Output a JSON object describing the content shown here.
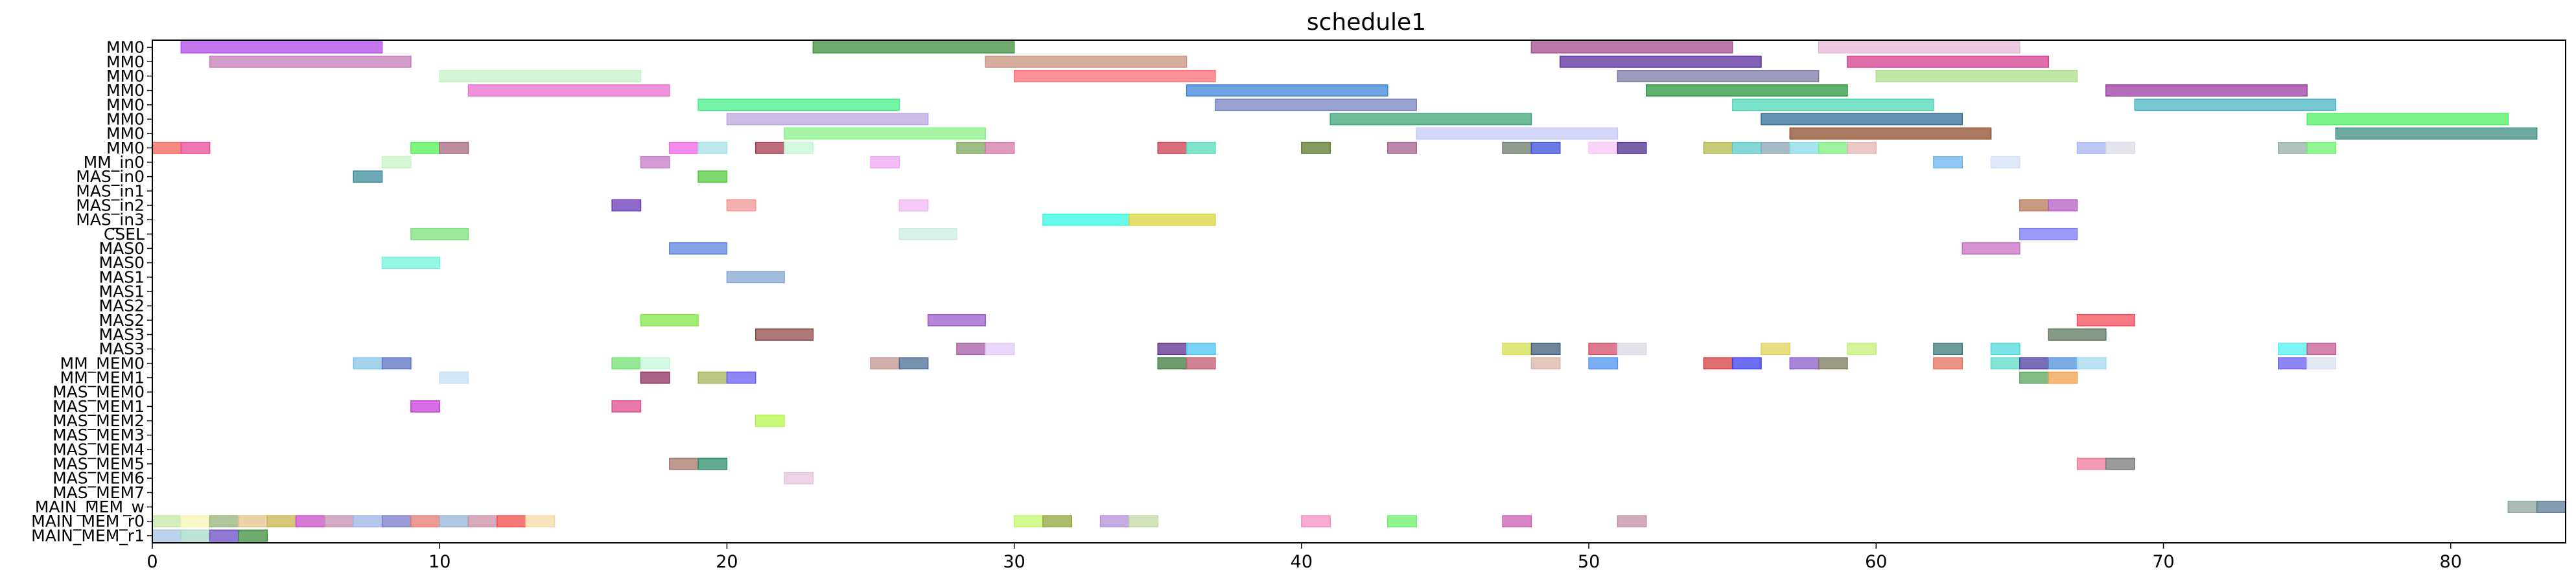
{
  "chart_data": {
    "type": "gantt",
    "title": "schedule1",
    "xlabel": "",
    "ylabel": "",
    "xlim": [
      0,
      84
    ],
    "xticks": [
      0,
      10,
      20,
      30,
      40,
      50,
      60,
      70,
      80
    ],
    "grid": false,
    "rows": [
      "MM0",
      "MM0",
      "MM0",
      "MM0",
      "MM0",
      "MM0",
      "MM0",
      "MM0",
      "MM_in0",
      "MAS_in0",
      "MAS_in1",
      "MAS_in2",
      "MAS_in3",
      "CSEL",
      "MAS0",
      "MAS0",
      "MAS1",
      "MAS1",
      "MAS2",
      "MAS2",
      "MAS3",
      "MAS3",
      "MM_MEM0",
      "MM_MEM1",
      "MAS_MEM0",
      "MAS_MEM1",
      "MAS_MEM2",
      "MAS_MEM3",
      "MAS_MEM4",
      "MAS_MEM5",
      "MAS_MEM6",
      "MAS_MEM7",
      "MAIN_MEM_w",
      "MAIN_MEM_r0",
      "MAIN_MEM_r1"
    ],
    "tasks": [
      {
        "row": 0,
        "start": 1,
        "end": 8,
        "color": "#b24ae8"
      },
      {
        "row": 0,
        "start": 23,
        "end": 30,
        "color": "#3e8f3e"
      },
      {
        "row": 0,
        "start": 48,
        "end": 55,
        "color": "#a64d8f"
      },
      {
        "row": 0,
        "start": 58,
        "end": 65,
        "color": "#e6b8d6"
      },
      {
        "row": 1,
        "start": 2,
        "end": 9,
        "color": "#c27bb4"
      },
      {
        "row": 1,
        "start": 29,
        "end": 36,
        "color": "#c9917f"
      },
      {
        "row": 1,
        "start": 49,
        "end": 56,
        "color": "#5a2d9c"
      },
      {
        "row": 1,
        "start": 59,
        "end": 66,
        "color": "#d43d8f"
      },
      {
        "row": 2,
        "start": 10,
        "end": 17,
        "color": "#c6f2c6"
      },
      {
        "row": 2,
        "start": 30,
        "end": 37,
        "color": "#ff6b75"
      },
      {
        "row": 2,
        "start": 51,
        "end": 58,
        "color": "#7d7aa8"
      },
      {
        "row": 2,
        "start": 60,
        "end": 67,
        "color": "#aee08a"
      },
      {
        "row": 3,
        "start": 11,
        "end": 18,
        "color": "#ec6fd0"
      },
      {
        "row": 3,
        "start": 36,
        "end": 43,
        "color": "#3d85d9"
      },
      {
        "row": 3,
        "start": 52,
        "end": 59,
        "color": "#2b9a3f"
      },
      {
        "row": 3,
        "start": 68,
        "end": 75,
        "color": "#9e3da3"
      },
      {
        "row": 4,
        "start": 19,
        "end": 26,
        "color": "#45f08a"
      },
      {
        "row": 4,
        "start": 37,
        "end": 44,
        "color": "#7784c2"
      },
      {
        "row": 4,
        "start": 55,
        "end": 62,
        "color": "#4ed9b8"
      },
      {
        "row": 4,
        "start": 69,
        "end": 76,
        "color": "#48b4c4"
      },
      {
        "row": 5,
        "start": 20,
        "end": 27,
        "color": "#b9a6e0"
      },
      {
        "row": 5,
        "start": 41,
        "end": 48,
        "color": "#3da67a"
      },
      {
        "row": 5,
        "start": 56,
        "end": 63,
        "color": "#2e6d96"
      },
      {
        "row": 5,
        "start": 75,
        "end": 82,
        "color": "#4df062"
      },
      {
        "row": 6,
        "start": 22,
        "end": 29,
        "color": "#88f088"
      },
      {
        "row": 6,
        "start": 44,
        "end": 51,
        "color": "#c7c9f5"
      },
      {
        "row": 6,
        "start": 57,
        "end": 64,
        "color": "#8c4e2a"
      },
      {
        "row": 6,
        "start": 76,
        "end": 83,
        "color": "#3d8c80"
      },
      {
        "row": 7,
        "start": 0,
        "end": 1,
        "color": "#f0645a"
      },
      {
        "row": 7,
        "start": 1,
        "end": 2,
        "color": "#e84a98"
      },
      {
        "row": 7,
        "start": 9,
        "end": 10,
        "color": "#54f054"
      },
      {
        "row": 7,
        "start": 10,
        "end": 11,
        "color": "#a6687f"
      },
      {
        "row": 7,
        "start": 18,
        "end": 19,
        "color": "#f064e6"
      },
      {
        "row": 7,
        "start": 19,
        "end": 20,
        "color": "#a6e0e8"
      },
      {
        "row": 7,
        "start": 21,
        "end": 22,
        "color": "#a63a4d"
      },
      {
        "row": 7,
        "start": 22,
        "end": 23,
        "color": "#c4f5d6"
      },
      {
        "row": 7,
        "start": 28,
        "end": 29,
        "color": "#7fa85e"
      },
      {
        "row": 7,
        "start": 29,
        "end": 30,
        "color": "#d47aa8"
      },
      {
        "row": 7,
        "start": 35,
        "end": 36,
        "color": "#c93d4d"
      },
      {
        "row": 7,
        "start": 36,
        "end": 37,
        "color": "#54dbb8"
      },
      {
        "row": 7,
        "start": 40,
        "end": 41,
        "color": "#5c7a2e"
      },
      {
        "row": 7,
        "start": 43,
        "end": 44,
        "color": "#a6618f"
      },
      {
        "row": 7,
        "start": 47,
        "end": 48,
        "color": "#6b7a6b"
      },
      {
        "row": 7,
        "start": 48,
        "end": 49,
        "color": "#3d4ed9"
      },
      {
        "row": 7,
        "start": 50,
        "end": 51,
        "color": "#f7c4f5"
      },
      {
        "row": 7,
        "start": 51,
        "end": 52,
        "color": "#4d2d8f"
      },
      {
        "row": 7,
        "start": 54,
        "end": 55,
        "color": "#b4b84a"
      },
      {
        "row": 7,
        "start": 55,
        "end": 56,
        "color": "#5cc9c9"
      },
      {
        "row": 7,
        "start": 56,
        "end": 57,
        "color": "#8aa6b4"
      },
      {
        "row": 7,
        "start": 57,
        "end": 58,
        "color": "#8ad9e6"
      },
      {
        "row": 7,
        "start": 58,
        "end": 59,
        "color": "#7ef07e"
      },
      {
        "row": 7,
        "start": 59,
        "end": 60,
        "color": "#e6b4b4"
      },
      {
        "row": 7,
        "start": 67,
        "end": 68,
        "color": "#a6b4f0"
      },
      {
        "row": 7,
        "start": 68,
        "end": 69,
        "color": "#d9dbe6"
      },
      {
        "row": 7,
        "start": 74,
        "end": 75,
        "color": "#94aea6"
      },
      {
        "row": 7,
        "start": 75,
        "end": 76,
        "color": "#6ef06e"
      },
      {
        "row": 8,
        "start": 8,
        "end": 9,
        "color": "#c6f5c6"
      },
      {
        "row": 8,
        "start": 17,
        "end": 18,
        "color": "#c77ac9"
      },
      {
        "row": 8,
        "start": 25,
        "end": 26,
        "color": "#f0a6f5"
      },
      {
        "row": 8,
        "start": 62,
        "end": 63,
        "color": "#6bb4f0"
      },
      {
        "row": 8,
        "start": 64,
        "end": 65,
        "color": "#d3e0f5"
      },
      {
        "row": 9,
        "start": 7,
        "end": 8,
        "color": "#3d8c9e"
      },
      {
        "row": 9,
        "start": 19,
        "end": 20,
        "color": "#54c93d"
      },
      {
        "row": 11,
        "start": 16,
        "end": 17,
        "color": "#6b38b8"
      },
      {
        "row": 11,
        "start": 20,
        "end": 21,
        "color": "#f09494"
      },
      {
        "row": 11,
        "start": 26,
        "end": 27,
        "color": "#f2b8f0"
      },
      {
        "row": 11,
        "start": 65,
        "end": 66,
        "color": "#b87a5c"
      },
      {
        "row": 11,
        "start": 66,
        "end": 67,
        "color": "#b45cc4"
      },
      {
        "row": 12,
        "start": 31,
        "end": 34,
        "color": "#38f5e0"
      },
      {
        "row": 12,
        "start": 34,
        "end": 37,
        "color": "#d9d438"
      },
      {
        "row": 13,
        "start": 9,
        "end": 11,
        "color": "#7de07d"
      },
      {
        "row": 13,
        "start": 26,
        "end": 28,
        "color": "#ccece0"
      },
      {
        "row": 13,
        "start": 65,
        "end": 67,
        "color": "#7a7af5"
      },
      {
        "row": 14,
        "start": 18,
        "end": 20,
        "color": "#5e84e0"
      },
      {
        "row": 14,
        "start": 63,
        "end": 65,
        "color": "#c970c4"
      },
      {
        "row": 15,
        "start": 8,
        "end": 10,
        "color": "#70f5dc"
      },
      {
        "row": 16,
        "start": 20,
        "end": 22,
        "color": "#85a6d1"
      },
      {
        "row": 19,
        "start": 17,
        "end": 19,
        "color": "#82e84a"
      },
      {
        "row": 19,
        "start": 27,
        "end": 29,
        "color": "#9b5ccc"
      },
      {
        "row": 19,
        "start": 67,
        "end": 69,
        "color": "#f54d5c"
      },
      {
        "row": 20,
        "start": 21,
        "end": 23,
        "color": "#8f4a4a"
      },
      {
        "row": 20,
        "start": 66,
        "end": 68,
        "color": "#5c7a5c"
      },
      {
        "row": 21,
        "start": 28,
        "end": 29,
        "color": "#a65ca6"
      },
      {
        "row": 21,
        "start": 29,
        "end": 30,
        "color": "#e0c9f5"
      },
      {
        "row": 21,
        "start": 35,
        "end": 36,
        "color": "#5c2d8c"
      },
      {
        "row": 21,
        "start": 36,
        "end": 37,
        "color": "#4dc4f0"
      },
      {
        "row": 21,
        "start": 47,
        "end": 48,
        "color": "#d4e04d"
      },
      {
        "row": 21,
        "start": 48,
        "end": 49,
        "color": "#3d5c7a"
      },
      {
        "row": 21,
        "start": 50,
        "end": 51,
        "color": "#d44d6b"
      },
      {
        "row": 21,
        "start": 51,
        "end": 52,
        "color": "#d9d9e6"
      },
      {
        "row": 21,
        "start": 56,
        "end": 57,
        "color": "#e0d45c"
      },
      {
        "row": 21,
        "start": 59,
        "end": 60,
        "color": "#c4f07a"
      },
      {
        "row": 21,
        "start": 62,
        "end": 63,
        "color": "#3d7a7a"
      },
      {
        "row": 21,
        "start": 64,
        "end": 65,
        "color": "#4dd9d9"
      },
      {
        "row": 21,
        "start": 74,
        "end": 75,
        "color": "#54f0f0"
      },
      {
        "row": 21,
        "start": 75,
        "end": 76,
        "color": "#c25c94"
      },
      {
        "row": 22,
        "start": 7,
        "end": 8,
        "color": "#85c4e6"
      },
      {
        "row": 22,
        "start": 8,
        "end": 9,
        "color": "#5c70c4"
      },
      {
        "row": 22,
        "start": 16,
        "end": 17,
        "color": "#70e070"
      },
      {
        "row": 22,
        "start": 17,
        "end": 18,
        "color": "#c4f5d9"
      },
      {
        "row": 22,
        "start": 25,
        "end": 26,
        "color": "#c4948f"
      },
      {
        "row": 22,
        "start": 26,
        "end": 27,
        "color": "#4d6b94"
      },
      {
        "row": 22,
        "start": 35,
        "end": 36,
        "color": "#3d7a3d"
      },
      {
        "row": 22,
        "start": 36,
        "end": 37,
        "color": "#c25c70"
      },
      {
        "row": 22,
        "start": 48,
        "end": 49,
        "color": "#d9b4a6"
      },
      {
        "row": 22,
        "start": 50,
        "end": 51,
        "color": "#4d94f0"
      },
      {
        "row": 22,
        "start": 54,
        "end": 55,
        "color": "#d43d3d"
      },
      {
        "row": 22,
        "start": 55,
        "end": 56,
        "color": "#3d3df0"
      },
      {
        "row": 22,
        "start": 57,
        "end": 58,
        "color": "#8a5cc9"
      },
      {
        "row": 22,
        "start": 58,
        "end": 59,
        "color": "#7a7a5c"
      },
      {
        "row": 22,
        "start": 62,
        "end": 63,
        "color": "#e6705c"
      },
      {
        "row": 22,
        "start": 64,
        "end": 65,
        "color": "#5cd9c4"
      },
      {
        "row": 22,
        "start": 65,
        "end": 66,
        "color": "#4d3d9e"
      },
      {
        "row": 22,
        "start": 66,
        "end": 67,
        "color": "#4d8fd9"
      },
      {
        "row": 22,
        "start": 67,
        "end": 68,
        "color": "#a6d9f0"
      },
      {
        "row": 22,
        "start": 74,
        "end": 75,
        "color": "#6b5cf0"
      },
      {
        "row": 22,
        "start": 75,
        "end": 76,
        "color": "#d9e0f0"
      },
      {
        "row": 23,
        "start": 10,
        "end": 11,
        "color": "#c4e0f5"
      },
      {
        "row": 23,
        "start": 17,
        "end": 18,
        "color": "#8f2d5c"
      },
      {
        "row": 23,
        "start": 19,
        "end": 20,
        "color": "#a6b45c"
      },
      {
        "row": 23,
        "start": 20,
        "end": 21,
        "color": "#6b5cf0"
      },
      {
        "row": 23,
        "start": 65,
        "end": 66,
        "color": "#5ca65c"
      },
      {
        "row": 23,
        "start": 66,
        "end": 67,
        "color": "#f0a04d"
      },
      {
        "row": 25,
        "start": 9,
        "end": 10,
        "color": "#c93dd9"
      },
      {
        "row": 25,
        "start": 16,
        "end": 17,
        "color": "#e04d8f"
      },
      {
        "row": 26,
        "start": 21,
        "end": 22,
        "color": "#b4f54d"
      },
      {
        "row": 29,
        "start": 18,
        "end": 19,
        "color": "#a6786b"
      },
      {
        "row": 29,
        "start": 19,
        "end": 20,
        "color": "#2d8f6b"
      },
      {
        "row": 29,
        "start": 67,
        "end": 68,
        "color": "#f07a9e"
      },
      {
        "row": 29,
        "start": 68,
        "end": 69,
        "color": "#7a7a7a"
      },
      {
        "row": 30,
        "start": 22,
        "end": 23,
        "color": "#e6c4dc"
      },
      {
        "row": 32,
        "start": 82,
        "end": 83,
        "color": "#8fa69e"
      },
      {
        "row": 32,
        "start": 83,
        "end": 84,
        "color": "#5c7a94"
      },
      {
        "row": 33,
        "start": 0,
        "end": 1,
        "color": "#c4e6a6"
      },
      {
        "row": 33,
        "start": 1,
        "end": 2,
        "color": "#f5f5b4"
      },
      {
        "row": 33,
        "start": 2,
        "end": 3,
        "color": "#94b47a"
      },
      {
        "row": 33,
        "start": 3,
        "end": 4,
        "color": "#e6c48a"
      },
      {
        "row": 33,
        "start": 4,
        "end": 5,
        "color": "#c9b44d"
      },
      {
        "row": 33,
        "start": 5,
        "end": 6,
        "color": "#c94dc4"
      },
      {
        "row": 33,
        "start": 6,
        "end": 7,
        "color": "#c48fb4"
      },
      {
        "row": 33,
        "start": 7,
        "end": 8,
        "color": "#9eb4e6"
      },
      {
        "row": 33,
        "start": 8,
        "end": 9,
        "color": "#7a7ac9"
      },
      {
        "row": 33,
        "start": 9,
        "end": 10,
        "color": "#e67a70"
      },
      {
        "row": 33,
        "start": 10,
        "end": 11,
        "color": "#94b4d9"
      },
      {
        "row": 33,
        "start": 11,
        "end": 12,
        "color": "#c98fa6"
      },
      {
        "row": 33,
        "start": 12,
        "end": 13,
        "color": "#f04d4d"
      },
      {
        "row": 33,
        "start": 13,
        "end": 14,
        "color": "#f5d9a6"
      },
      {
        "row": 33,
        "start": 30,
        "end": 31,
        "color": "#c4f56b"
      },
      {
        "row": 33,
        "start": 31,
        "end": 32,
        "color": "#8fa63d"
      },
      {
        "row": 33,
        "start": 33,
        "end": 34,
        "color": "#b48fd9"
      },
      {
        "row": 33,
        "start": 34,
        "end": 35,
        "color": "#c4d9a6"
      },
      {
        "row": 33,
        "start": 40,
        "end": 41,
        "color": "#f58fc4"
      },
      {
        "row": 33,
        "start": 43,
        "end": 44,
        "color": "#6bf06b"
      },
      {
        "row": 33,
        "start": 47,
        "end": 48,
        "color": "#c95cb4"
      },
      {
        "row": 33,
        "start": 51,
        "end": 52,
        "color": "#c48fa6"
      },
      {
        "row": 34,
        "start": 0,
        "end": 1,
        "color": "#a6c4e6"
      },
      {
        "row": 34,
        "start": 1,
        "end": 2,
        "color": "#a6d9c9"
      },
      {
        "row": 34,
        "start": 2,
        "end": 3,
        "color": "#6b4dc4"
      },
      {
        "row": 34,
        "start": 3,
        "end": 4,
        "color": "#3d8f3d"
      }
    ]
  }
}
